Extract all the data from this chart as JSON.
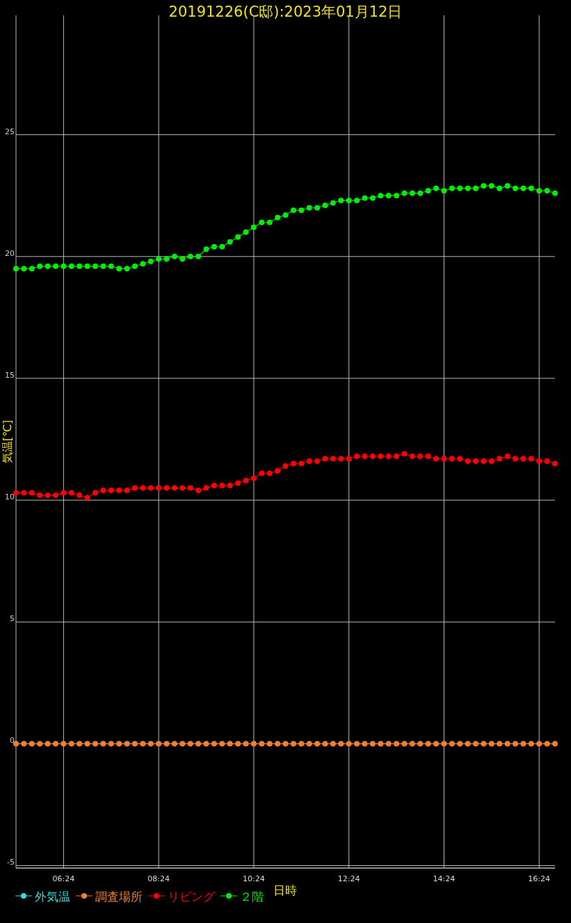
{
  "chart_data": {
    "type": "line",
    "title": "20191226(C邸):2023年01月12日",
    "xlabel": "日時",
    "ylabel": "気温[℃]",
    "x": [
      "2023-01-12T05:24",
      "2023-01-12T05:34",
      "2023-01-12T05:44",
      "2023-01-12T05:54",
      "2023-01-12T06:04",
      "2023-01-12T06:14",
      "2023-01-12T06:24",
      "2023-01-12T06:34",
      "2023-01-12T06:44",
      "2023-01-12T06:54",
      "2023-01-12T07:04",
      "2023-01-12T07:14",
      "2023-01-12T07:24",
      "2023-01-12T07:34",
      "2023-01-12T07:44",
      "2023-01-12T07:54",
      "2023-01-12T08:04",
      "2023-01-12T08:14",
      "2023-01-12T08:24",
      "2023-01-12T08:34",
      "2023-01-12T08:44",
      "2023-01-12T08:54",
      "2023-01-12T09:04",
      "2023-01-12T09:14",
      "2023-01-12T09:24",
      "2023-01-12T09:34",
      "2023-01-12T09:44",
      "2023-01-12T09:54",
      "2023-01-12T10:04",
      "2023-01-12T10:14",
      "2023-01-12T10:24",
      "2023-01-12T10:34",
      "2023-01-12T10:44",
      "2023-01-12T10:54",
      "2023-01-12T11:04",
      "2023-01-12T11:14",
      "2023-01-12T11:24",
      "2023-01-12T11:34",
      "2023-01-12T11:44",
      "2023-01-12T11:54",
      "2023-01-12T12:04",
      "2023-01-12T12:14",
      "2023-01-12T12:24",
      "2023-01-12T12:34",
      "2023-01-12T12:44",
      "2023-01-12T12:54",
      "2023-01-12T13:04",
      "2023-01-12T13:14",
      "2023-01-12T13:24",
      "2023-01-12T13:34",
      "2023-01-12T13:44",
      "2023-01-12T13:54",
      "2023-01-12T14:04",
      "2023-01-12T14:14",
      "2023-01-12T14:24",
      "2023-01-12T14:34",
      "2023-01-12T14:44",
      "2023-01-12T14:54",
      "2023-01-12T15:04",
      "2023-01-12T15:14",
      "2023-01-12T15:24",
      "2023-01-12T15:34",
      "2023-01-12T15:44",
      "2023-01-12T15:54",
      "2023-01-12T16:04",
      "2023-01-12T16:14",
      "2023-01-12T16:24",
      "2023-01-12T16:34",
      "2023-01-12T16:44"
    ],
    "series": [
      {
        "name": "外気温",
        "color": "#33dddd",
        "values": [
          null,
          null,
          null,
          null,
          null,
          null,
          null,
          null,
          null,
          null,
          null,
          null,
          null,
          null,
          null,
          null,
          null,
          null,
          null,
          null,
          null,
          null,
          null,
          null,
          null,
          null,
          null,
          null,
          null,
          null,
          null,
          null,
          null,
          null,
          null,
          null,
          null,
          null,
          null,
          null,
          null,
          null,
          null,
          null,
          null,
          null,
          null,
          null,
          null,
          null,
          null,
          null,
          null,
          null,
          null,
          null,
          null,
          null,
          null,
          null,
          null,
          null,
          null,
          null,
          null,
          null,
          null,
          null,
          null
        ]
      },
      {
        "name": "調査場所",
        "color": "#f08030",
        "values": [
          0,
          0,
          0,
          0,
          0,
          0,
          0,
          0,
          0,
          0,
          0,
          0,
          0,
          0,
          0,
          0,
          0,
          0,
          0,
          0,
          0,
          0,
          0,
          0,
          0,
          0,
          0,
          0,
          0,
          0,
          0,
          0,
          0,
          0,
          0,
          0,
          0,
          0,
          0,
          0,
          0,
          0,
          0,
          0,
          0,
          0,
          0,
          0,
          0,
          0,
          0,
          0,
          0,
          0,
          0,
          0,
          0,
          0,
          0,
          0,
          0,
          0,
          0,
          0,
          0,
          0,
          0,
          0,
          0
        ]
      },
      {
        "name": "リビング",
        "color": "#ff0000",
        "values": [
          10.3,
          10.3,
          10.3,
          10.2,
          10.2,
          10.2,
          10.3,
          10.3,
          10.2,
          10.1,
          10.3,
          10.4,
          10.4,
          10.4,
          10.4,
          10.5,
          10.5,
          10.5,
          10.5,
          10.5,
          10.5,
          10.5,
          10.5,
          10.4,
          10.5,
          10.6,
          10.6,
          10.6,
          10.7,
          10.8,
          10.9,
          11.1,
          11.1,
          11.2,
          11.4,
          11.5,
          11.5,
          11.6,
          11.6,
          11.7,
          11.7,
          11.7,
          11.7,
          11.8,
          11.8,
          11.8,
          11.8,
          11.8,
          11.8,
          11.9,
          11.8,
          11.8,
          11.8,
          11.7,
          11.7,
          11.7,
          11.7,
          11.6,
          11.6,
          11.6,
          11.6,
          11.7,
          11.8,
          11.7,
          11.7,
          11.7,
          11.6,
          11.6,
          11.5
        ]
      },
      {
        "name": "２階",
        "color": "#00ee00",
        "values": [
          19.5,
          19.5,
          19.5,
          19.6,
          19.6,
          19.6,
          19.6,
          19.6,
          19.6,
          19.6,
          19.6,
          19.6,
          19.6,
          19.5,
          19.5,
          19.6,
          19.7,
          19.8,
          19.9,
          19.9,
          20.0,
          19.9,
          20.0,
          20.0,
          20.3,
          20.4,
          20.4,
          20.6,
          20.8,
          21.0,
          21.2,
          21.4,
          21.4,
          21.6,
          21.7,
          21.9,
          21.9,
          22.0,
          22.0,
          22.1,
          22.2,
          22.3,
          22.3,
          22.3,
          22.4,
          22.4,
          22.5,
          22.5,
          22.5,
          22.6,
          22.6,
          22.6,
          22.7,
          22.8,
          22.7,
          22.8,
          22.8,
          22.8,
          22.8,
          22.9,
          22.9,
          22.8,
          22.9,
          22.8,
          22.8,
          22.8,
          22.7,
          22.7,
          22.6
        ]
      }
    ],
    "xlim": [
      "2023-01-12T05:24",
      "2023-01-12T16:44"
    ],
    "xticks": [
      {
        "value": "2023-01-12T06:24",
        "label": "06:24"
      },
      {
        "value": "2023-01-12T08:24",
        "label": "08:24"
      },
      {
        "value": "2023-01-12T10:24",
        "label": "10:24"
      },
      {
        "value": "2023-01-12T12:24",
        "label": "12:24"
      },
      {
        "value": "2023-01-12T14:24",
        "label": "14:24"
      },
      {
        "value": "2023-01-12T16:24",
        "label": "16:24"
      }
    ],
    "ylim": [
      -5.1,
      29.9
    ],
    "yticks": [
      -5,
      0,
      5,
      10,
      15,
      20,
      25
    ],
    "grid": true,
    "legend": "bottom left",
    "marker": "circle",
    "line_style": "solid"
  }
}
